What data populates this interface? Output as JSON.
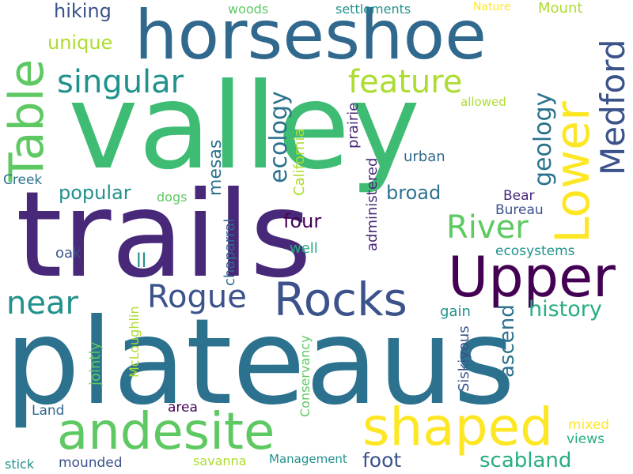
{
  "palette": {
    "dark_purple": "#440154",
    "indigo": "#472d7b",
    "blue": "#3b528b",
    "steel": "#2c728e",
    "teal": "#21918c",
    "green": "#27ad81",
    "lime": "#5ec962",
    "yellow_green": "#addc30",
    "yellow": "#fde725",
    "background": "#ffffff"
  },
  "words": {
    "plateaus": "plateaus",
    "valley": "valley",
    "trails": "trails",
    "horseshoe": "horseshoe",
    "table": "Table",
    "upper": "Upper",
    "lower": "Lower",
    "andesite": "andesite",
    "shaped": "shaped",
    "rocks": "Rocks",
    "medford": "Medford",
    "singular": "singular",
    "feature": "feature",
    "rogue": "Rogue",
    "river": "River",
    "near": "near",
    "ecology": "ecology",
    "geology": "geology",
    "history": "history",
    "ascend": "ascend",
    "scabland": "scabland",
    "foot": "foot",
    "hiking": "hiking",
    "unique": "unique",
    "popular": "popular",
    "broad": "broad",
    "mesas": "mesas",
    "four": "four",
    "california": "California",
    "prairie": "prairie",
    "administered": "administered",
    "urban": "urban",
    "bear": "Bear",
    "bureau": "Bureau",
    "ecosystems": "ecosystems",
    "well": "well",
    "chaparral": "chaparral",
    "oak": "oak",
    "ll": "ll",
    "creek": "Creek",
    "dogs": "dogs",
    "allowed": "allowed",
    "woods": "woods",
    "settlements": "settlements",
    "nature": "Nature",
    "mount": "Mount",
    "mcloughlin": "McLoughlin",
    "jointly": "jointly",
    "conservancy": "Conservancy",
    "siskiyous": "Siskiyous",
    "gain": "gain",
    "land": "Land",
    "area": "area",
    "mixed": "mixed",
    "views": "views",
    "stick": "stick",
    "mounded": "mounded",
    "savanna": "savanna",
    "management": "Management"
  }
}
